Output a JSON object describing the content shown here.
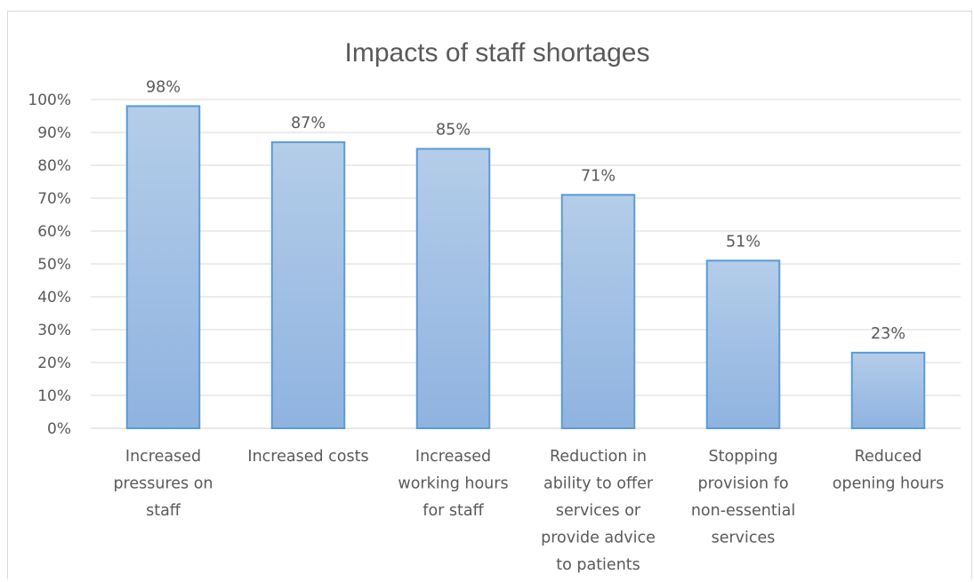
{
  "chart_data": {
    "type": "bar",
    "title": "Impacts of staff shortages",
    "xlabel": "",
    "ylabel": "",
    "ylim": [
      0,
      100
    ],
    "yticks": [
      "0%",
      "10%",
      "20%",
      "30%",
      "40%",
      "50%",
      "60%",
      "70%",
      "80%",
      "90%",
      "100%"
    ],
    "grid": true,
    "legend": "none",
    "categories": [
      [
        "Increased",
        "pressures on",
        "staff"
      ],
      [
        "Increased costs"
      ],
      [
        "Increased",
        "working hours",
        "for staff"
      ],
      [
        "Reduction in",
        "ability to offer",
        "services or",
        "provide advice",
        "to patients"
      ],
      [
        "Stopping",
        "provision fo",
        "non-essential",
        "services"
      ],
      [
        "Reduced",
        "opening hours"
      ]
    ],
    "values": [
      98,
      87,
      85,
      71,
      51,
      23
    ],
    "data_labels": [
      "98%",
      "87%",
      "85%",
      "71%",
      "51%",
      "23%"
    ],
    "colors": {
      "bar_fill_top": "#b4cde9",
      "bar_fill_bottom": "#8fb3e0",
      "bar_stroke": "#5b9bd5",
      "grid": "#d9d9d9",
      "text": "#595959"
    }
  }
}
